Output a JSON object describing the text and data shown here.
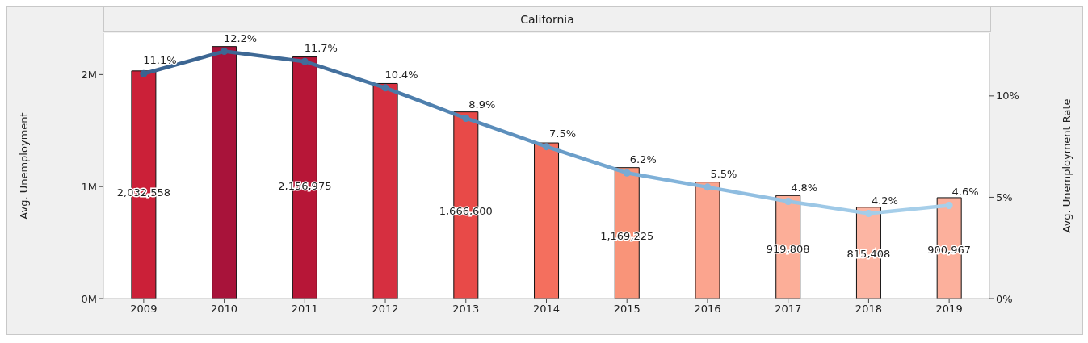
{
  "chart_data": {
    "type": "bar",
    "title": "California",
    "ylabel": "Avg. Unemployment",
    "y2label": "Avg. Unemployment Rate",
    "categories": [
      "2009",
      "2010",
      "2011",
      "2012",
      "2013",
      "2014",
      "2015",
      "2016",
      "2017",
      "2018",
      "2019"
    ],
    "series": [
      {
        "values": [
          2032558,
          2250000,
          2156975,
          1920000,
          1666600,
          1390000,
          1169225,
          1040000,
          919808,
          815408,
          900967
        ],
        "colors": [
          "#cb2038",
          "#a8133a",
          "#b71637",
          "#d62f40",
          "#e84a48",
          "#f46f5e",
          "#f99479",
          "#fba48e",
          "#fcae98",
          "#fcb5a3",
          "#fcb09c"
        ],
        "value_labels": [
          "2,032,558",
          null,
          "2,156,975",
          null,
          "1,666,600",
          null,
          "1,169,225",
          null,
          "919,808",
          "815,408",
          "900,967"
        ]
      },
      {
        "type": "line",
        "axis": "y2",
        "values": [
          11.1,
          12.2,
          11.7,
          10.4,
          8.9,
          7.5,
          6.2,
          5.5,
          4.8,
          4.2,
          4.6
        ],
        "colors": [
          "#3b6391",
          "#3d6793",
          "#416c99",
          "#4878a6",
          "#5587b5",
          "#6598c4",
          "#78abd4",
          "#8ab9de",
          "#98c4e4",
          "#a4cde9",
          "#a8d0ea"
        ],
        "value_labels": [
          "11.1%",
          "12.2%",
          "11.7%",
          "10.4%",
          "8.9%",
          "7.5%",
          "6.2%",
          "5.5%",
          "4.8%",
          "4.2%",
          "4.6%"
        ]
      }
    ],
    "ylim": [
      0,
      2370000
    ],
    "yticks": [
      {
        "value": 0,
        "label": "0M"
      },
      {
        "value": 1000000,
        "label": "1M"
      },
      {
        "value": 2000000,
        "label": "2M"
      }
    ],
    "y2lim": [
      0,
      13.1
    ],
    "y2ticks": [
      {
        "value": 0,
        "label": "0%"
      },
      {
        "value": 5,
        "label": "5%"
      },
      {
        "value": 10,
        "label": "10%"
      }
    ],
    "marker": "circle",
    "line_style": "solid"
  }
}
